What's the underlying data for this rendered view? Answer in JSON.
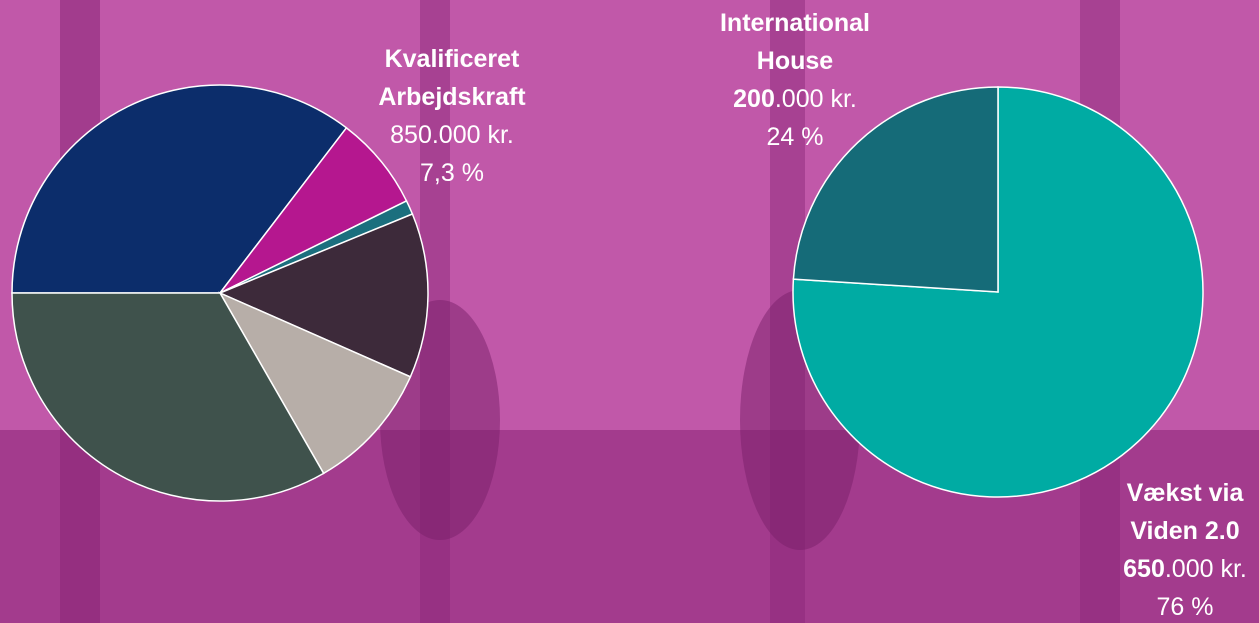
{
  "chart_data": [
    {
      "type": "pie",
      "categories": [
        null,
        "Kvalificeret Arbejdskraft",
        null,
        null,
        null,
        null
      ],
      "values": [
        35.4,
        7.3,
        1.1,
        12.8,
        10.1,
        33.3
      ],
      "value_labels": [
        null,
        "7,3 %",
        null,
        null,
        null,
        null
      ],
      "amounts": [
        null,
        850000,
        null,
        null,
        null,
        null
      ],
      "amount_labels": [
        null,
        "850.000 kr.",
        null,
        null,
        null,
        null
      ],
      "colors": [
        "#0c2d6b",
        "#b5178f",
        "#1b6f7e",
        "#3d2a3a",
        "#b7aea8",
        "#3f524c"
      ]
    },
    {
      "type": "pie",
      "categories": [
        "Vækst via Viden 2.0",
        "International House"
      ],
      "values": [
        76,
        24
      ],
      "value_labels": [
        "76 %",
        "24 %"
      ],
      "amounts": [
        650000,
        200000
      ],
      "amount_labels": [
        "650.000 kr.",
        "200.000 kr."
      ],
      "colors": [
        "#00aba3",
        "#156b78"
      ]
    }
  ]
}
